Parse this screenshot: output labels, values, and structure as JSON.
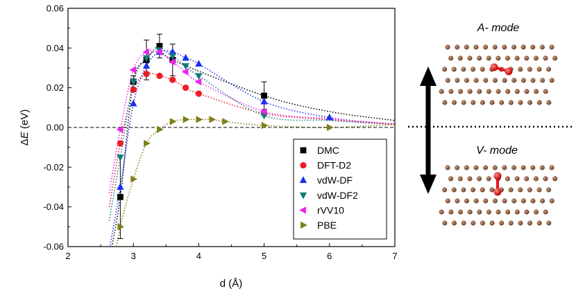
{
  "chart_data": {
    "type": "scatter",
    "xlabel": "d (Å)",
    "ylabel_prefix": "Δ",
    "ylabel_var": "E",
    "ylabel_unit": " (eV)",
    "xlim": [
      2,
      7
    ],
    "ylim": [
      -0.06,
      0.06
    ],
    "xticks": [
      "2",
      "3",
      "4",
      "5",
      "6",
      "7"
    ],
    "yticks": [
      "-0.06",
      "-0.04",
      "-0.02",
      "0.00",
      "0.02",
      "0.04",
      "0.06"
    ],
    "legend_position": "lower-right",
    "zero_line": true,
    "series": [
      {
        "name": "DMC",
        "marker": "square",
        "color": "#000000",
        "x": [
          2.8,
          3.0,
          3.2,
          3.4,
          3.6,
          5.0
        ],
        "y": [
          -0.035,
          0.023,
          0.034,
          0.041,
          0.034,
          0.016
        ],
        "err": [
          0.021,
          0.003,
          0.01,
          0.006,
          0.008,
          0.007
        ]
      },
      {
        "name": "DFT-D2",
        "marker": "circle",
        "color": "#ee1c25",
        "x": [
          2.8,
          3.0,
          3.2,
          3.4,
          3.6,
          3.8,
          4.0,
          5.0
        ],
        "y": [
          -0.008,
          0.019,
          0.027,
          0.026,
          0.024,
          0.02,
          0.017,
          0.007
        ]
      },
      {
        "name": "vdW-DF",
        "marker": "triangle-up",
        "color": "#1a2ef0",
        "x": [
          2.8,
          3.0,
          3.2,
          3.4,
          3.6,
          3.8,
          4.0,
          5.0,
          6.0
        ],
        "y": [
          -0.03,
          0.012,
          0.031,
          0.038,
          0.038,
          0.035,
          0.032,
          0.013,
          0.005
        ]
      },
      {
        "name": "vdW-DF2",
        "marker": "triangle-down",
        "color": "#117c7c",
        "x": [
          2.8,
          3.0,
          3.2,
          3.4,
          3.6,
          3.8,
          4.0,
          5.0
        ],
        "y": [
          -0.015,
          0.023,
          0.035,
          0.039,
          0.036,
          0.031,
          0.026,
          0.006
        ]
      },
      {
        "name": "rVV10",
        "marker": "triangle-left",
        "color": "#ee22ee",
        "x": [
          2.8,
          3.0,
          3.2,
          3.4,
          3.6,
          3.8,
          4.0,
          5.0
        ],
        "y": [
          -0.001,
          0.029,
          0.038,
          0.038,
          0.033,
          0.028,
          0.023,
          0.008
        ]
      },
      {
        "name": "PBE",
        "marker": "triangle-right",
        "color": "#7f7f17",
        "x": [
          2.8,
          3.0,
          3.2,
          3.4,
          3.6,
          3.8,
          4.0,
          4.2,
          4.4,
          5.0,
          6.0
        ],
        "y": [
          -0.05,
          -0.026,
          -0.008,
          -0.001,
          0.003,
          0.004,
          0.004,
          0.004,
          0.003,
          0.001,
          0.0
        ]
      }
    ]
  },
  "panels": {
    "a_mode_letter": "A",
    "a_mode_suffix": "- mode",
    "v_mode_letter": "V",
    "v_mode_suffix": "- mode"
  },
  "colors": {
    "carbon": "#8a5a3c",
    "oxygen": "#e8141c",
    "arrow": "#000000"
  }
}
